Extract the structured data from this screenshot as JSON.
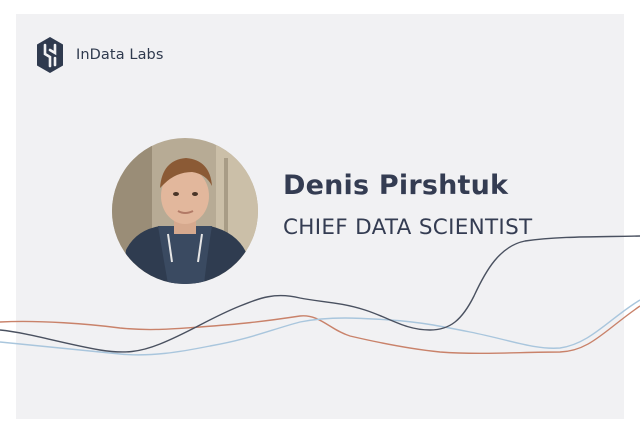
{
  "brand": {
    "name": "InData Labs",
    "logo_color": "#2f3a4e"
  },
  "profile": {
    "name": "Denis Pirshtuk",
    "title": "CHIEF DATA SCIENTIST"
  },
  "colors": {
    "card_background": "#f1f1f3",
    "text": "#343c52",
    "wave_dark": "#4a5160",
    "wave_orange": "#c9826a",
    "wave_blue": "#a9c6dd"
  }
}
